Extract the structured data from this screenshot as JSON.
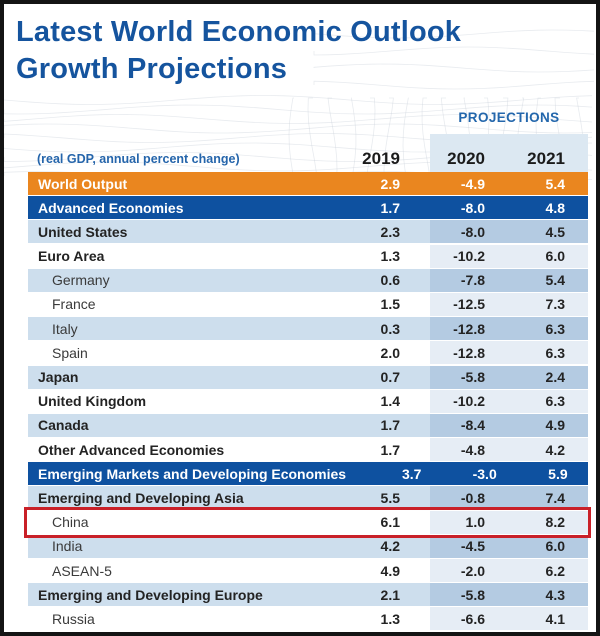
{
  "header": {
    "title_line1": "Latest World Economic Outlook",
    "title_line2": "Growth Projections"
  },
  "table": {
    "note": "(real GDP, annual percent change)",
    "projections_label": "PROJECTIONS"
  },
  "colors": {
    "title_blue": "#15549e",
    "world_output_orange": "#ea861f",
    "aggregate_navy": "#0e51a0",
    "row_stripe_blue": "#cddeed",
    "projection_tint_on_stripe": "#b4cbe2",
    "projection_tint_on_white": "#e6edf5",
    "projection_header_band": "#dce8f2",
    "highlight_red": "#c92028"
  },
  "chart_data": {
    "type": "table",
    "title": "Latest World Economic Outlook Growth Projections",
    "subtitle": "(real GDP, annual percent change)",
    "columns": [
      "2019",
      "2020",
      "2021"
    ],
    "projection_columns": [
      "2020",
      "2021"
    ],
    "highlighted_row": "China",
    "rows": [
      {
        "label": "World Output",
        "values": [
          "2.9",
          "-4.9",
          "5.4"
        ],
        "variant": "orange",
        "indent": false,
        "bold": true,
        "highlight": false
      },
      {
        "label": "Advanced Economies",
        "values": [
          "1.7",
          "-8.0",
          "4.8"
        ],
        "variant": "navy",
        "indent": false,
        "bold": true,
        "highlight": false
      },
      {
        "label": "United States",
        "values": [
          "2.3",
          "-8.0",
          "4.5"
        ],
        "variant": "stripe",
        "indent": false,
        "bold": true,
        "highlight": false
      },
      {
        "label": "Euro Area",
        "values": [
          "1.3",
          "-10.2",
          "6.0"
        ],
        "variant": "plain",
        "indent": false,
        "bold": true,
        "highlight": false
      },
      {
        "label": "Germany",
        "values": [
          "0.6",
          "-7.8",
          "5.4"
        ],
        "variant": "stripe",
        "indent": true,
        "bold": false,
        "highlight": false
      },
      {
        "label": "France",
        "values": [
          "1.5",
          "-12.5",
          "7.3"
        ],
        "variant": "plain",
        "indent": true,
        "bold": false,
        "highlight": false
      },
      {
        "label": "Italy",
        "values": [
          "0.3",
          "-12.8",
          "6.3"
        ],
        "variant": "stripe",
        "indent": true,
        "bold": false,
        "highlight": false
      },
      {
        "label": "Spain",
        "values": [
          "2.0",
          "-12.8",
          "6.3"
        ],
        "variant": "plain",
        "indent": true,
        "bold": false,
        "highlight": false
      },
      {
        "label": "Japan",
        "values": [
          "0.7",
          "-5.8",
          "2.4"
        ],
        "variant": "stripe",
        "indent": false,
        "bold": true,
        "highlight": false
      },
      {
        "label": "United Kingdom",
        "values": [
          "1.4",
          "-10.2",
          "6.3"
        ],
        "variant": "plain",
        "indent": false,
        "bold": true,
        "highlight": false
      },
      {
        "label": "Canada",
        "values": [
          "1.7",
          "-8.4",
          "4.9"
        ],
        "variant": "stripe",
        "indent": false,
        "bold": true,
        "highlight": false
      },
      {
        "label": "Other Advanced Economies",
        "values": [
          "1.7",
          "-4.8",
          "4.2"
        ],
        "variant": "plain",
        "indent": false,
        "bold": true,
        "highlight": false
      },
      {
        "label": "Emerging Markets and Developing Economies",
        "values": [
          "3.7",
          "-3.0",
          "5.9"
        ],
        "variant": "navy",
        "indent": false,
        "bold": true,
        "highlight": false
      },
      {
        "label": "Emerging and Developing Asia",
        "values": [
          "5.5",
          "-0.8",
          "7.4"
        ],
        "variant": "stripe",
        "indent": false,
        "bold": true,
        "highlight": false
      },
      {
        "label": "China",
        "values": [
          "6.1",
          "1.0",
          "8.2"
        ],
        "variant": "plain",
        "indent": true,
        "bold": false,
        "highlight": true
      },
      {
        "label": "India",
        "values": [
          "4.2",
          "-4.5",
          "6.0"
        ],
        "variant": "stripe",
        "indent": true,
        "bold": false,
        "highlight": false
      },
      {
        "label": "ASEAN-5",
        "values": [
          "4.9",
          "-2.0",
          "6.2"
        ],
        "variant": "plain",
        "indent": true,
        "bold": false,
        "highlight": false
      },
      {
        "label": "Emerging and Developing Europe",
        "values": [
          "2.1",
          "-5.8",
          "4.3"
        ],
        "variant": "stripe",
        "indent": false,
        "bold": true,
        "highlight": false
      },
      {
        "label": "Russia",
        "values": [
          "1.3",
          "-6.6",
          "4.1"
        ],
        "variant": "plain",
        "indent": true,
        "bold": false,
        "highlight": false
      }
    ]
  }
}
